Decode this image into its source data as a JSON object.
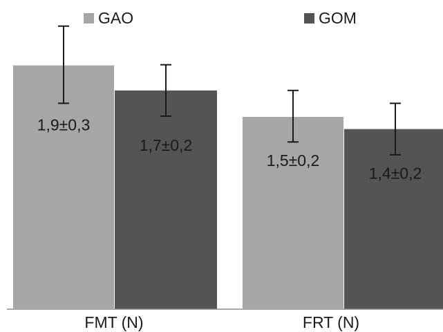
{
  "chart_data": {
    "type": "bar",
    "categories": [
      "FMT (N)",
      "FRT (N)"
    ],
    "series": [
      {
        "name": "GAO",
        "color": "#a6a6a6",
        "values": [
          1.9,
          1.5
        ],
        "error": [
          0.3,
          0.2
        ],
        "labels": [
          "1,9±0,3",
          "1,5±0,2"
        ]
      },
      {
        "name": "GOM",
        "color": "#545454",
        "values": [
          1.7,
          1.4
        ],
        "error": [
          0.2,
          0.2
        ],
        "labels": [
          "1,7±0,2",
          "1,4±0,2"
        ]
      }
    ],
    "ylim": [
      0,
      2.2
    ],
    "grid": false,
    "legend": "top"
  }
}
